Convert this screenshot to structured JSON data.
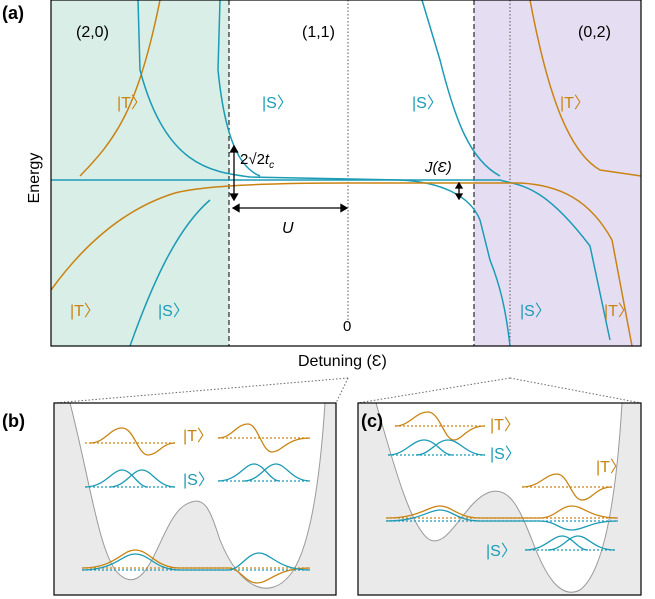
{
  "panel_a": {
    "label": "(a)",
    "region_labels": [
      "(2,0)",
      "(1,1)",
      "(0,2)"
    ],
    "state_labels": [
      "|T〉",
      "|S〉",
      "|S〉",
      "|T〉",
      "|T〉",
      "|S〉",
      "|S〉",
      "|T〉"
    ],
    "annotations": {
      "tunnel_coeff": "2√2",
      "tunnel_var": "t",
      "tunnel_sub": "c",
      "exchange": "J(Ɛ)",
      "charging": "U",
      "zero": "0"
    },
    "x_axis_label": "Detuning (Ɛ)",
    "y_axis_label": "Energy"
  },
  "panel_b": {
    "label": "(b)",
    "state_labels": [
      "|T〉",
      "|S〉"
    ]
  },
  "panel_c": {
    "label": "(c)",
    "state_labels": [
      "|T〉",
      "|S〉",
      "|T〉",
      "|S〉"
    ]
  },
  "colors": {
    "singlet": "#1b9bb5",
    "triplet": "#c98312",
    "region_20": "#d9eee7",
    "region_02": "#e5def3",
    "well": "#eaeaea",
    "axes": "#000000"
  }
}
